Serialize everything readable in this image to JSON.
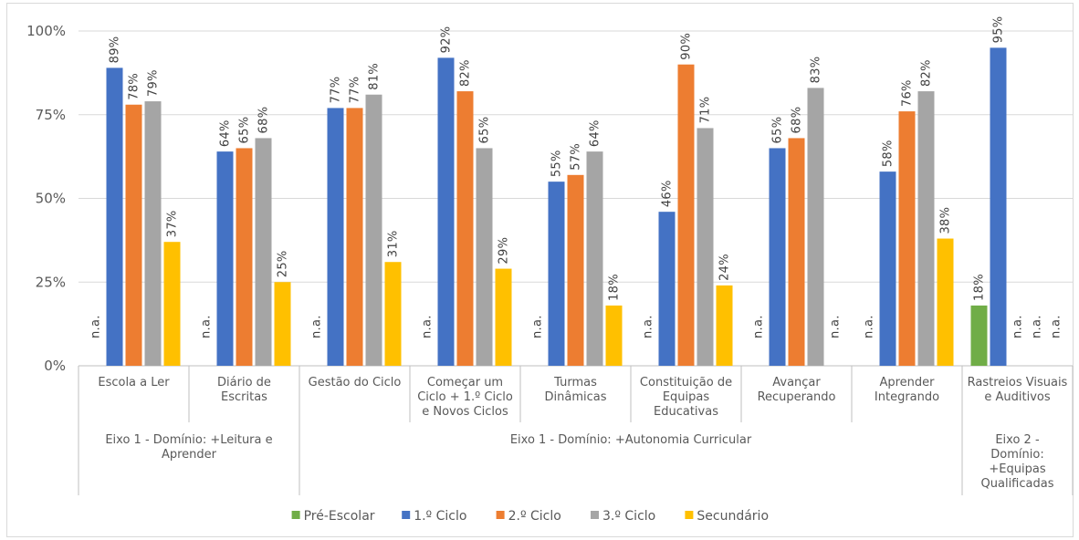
{
  "chart_data": {
    "type": "bar",
    "title": "",
    "xlabel": "",
    "ylabel": "",
    "ylim": [
      0,
      100
    ],
    "y_ticks": [
      "0%",
      "25%",
      "50%",
      "75%",
      "100%"
    ],
    "grid": true,
    "legend_position": "bottom",
    "categories": [
      "Escola a Ler",
      "Diário de Escritas",
      "Gestão do Ciclo",
      "Começar um Ciclo + 1.º Ciclo e Novos Ciclos",
      "Turmas Dinâmicas",
      "Constituição de Equipas Educativas",
      "Avançar Recuperando",
      "Aprender Integrando",
      "Rastreios Visuais e Auditivos"
    ],
    "category_lines": [
      [
        "Escola a Ler"
      ],
      [
        "Diário de",
        "Escritas"
      ],
      [
        "Gestão do Ciclo"
      ],
      [
        "Começar um",
        "Ciclo + 1.º Ciclo",
        "e Novos Ciclos"
      ],
      [
        "Turmas",
        "Dinâmicas"
      ],
      [
        "Constituição de",
        "Equipas",
        "Educativas"
      ],
      [
        "Avançar",
        "Recuperando"
      ],
      [
        "Aprender",
        "Integrando"
      ],
      [
        "Rastreios Visuais",
        "e Auditivos"
      ]
    ],
    "groups": [
      {
        "lines": [
          "Eixo 1 - Domínio: +Leitura e",
          "Aprender"
        ],
        "start": 0,
        "end": 1
      },
      {
        "lines": [
          "Eixo 1 - Domínio: +Autonomia Curricular"
        ],
        "start": 2,
        "end": 7
      },
      {
        "lines": [
          "Eixo 2 -",
          "Domínio:",
          "+Equipas",
          "Qualificadas"
        ],
        "start": 8,
        "end": 8
      }
    ],
    "na_label": "n.a.",
    "series": [
      {
        "name": "Pré-Escolar",
        "color": "#70ad47",
        "values": [
          null,
          null,
          null,
          null,
          null,
          null,
          null,
          null,
          18
        ],
        "labels": [
          "n.a.",
          "n.a.",
          "n.a.",
          "n.a.",
          "n.a.",
          "n.a.",
          "n.a.",
          "n.a.",
          "18%"
        ]
      },
      {
        "name": "1.º Ciclo",
        "color": "#4472c4",
        "values": [
          89,
          64,
          77,
          92,
          55,
          46,
          65,
          58,
          95
        ],
        "labels": [
          "89%",
          "64%",
          "77%",
          "92%",
          "55%",
          "46%",
          "65%",
          "58%",
          "95%"
        ]
      },
      {
        "name": "2.º Ciclo",
        "color": "#ed7d31",
        "values": [
          78,
          65,
          77,
          82,
          57,
          90,
          68,
          76,
          null
        ],
        "labels": [
          "78%",
          "65%",
          "77%",
          "82%",
          "57%",
          "90%",
          "68%",
          "76%",
          "n.a."
        ]
      },
      {
        "name": "3.º Ciclo",
        "color": "#a5a5a5",
        "values": [
          79,
          68,
          81,
          65,
          64,
          71,
          83,
          82,
          null
        ],
        "labels": [
          "79%",
          "68%",
          "81%",
          "65%",
          "64%",
          "71%",
          "83%",
          "82%",
          "n.a."
        ]
      },
      {
        "name": "Secundário",
        "color": "#ffc000",
        "values": [
          37,
          25,
          31,
          29,
          18,
          24,
          null,
          38,
          null
        ],
        "labels": [
          "37%",
          "25%",
          "31%",
          "29%",
          "18%",
          "24%",
          "n.a.",
          "38%",
          "n.a."
        ]
      }
    ]
  }
}
